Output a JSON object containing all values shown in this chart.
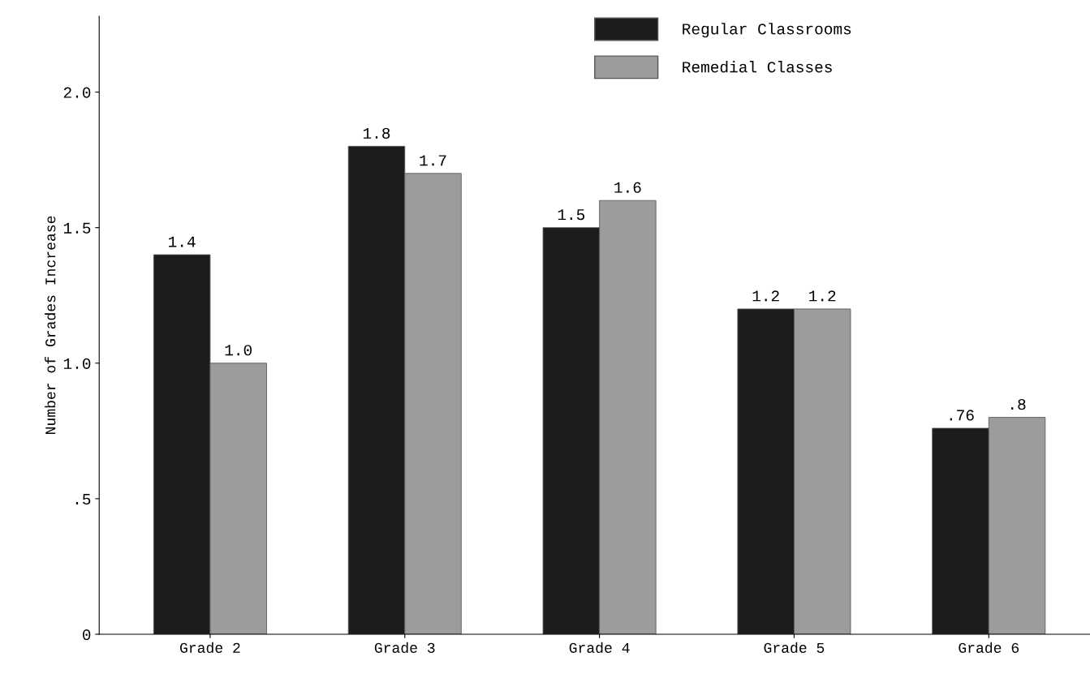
{
  "chart_data": {
    "type": "bar",
    "ylabel": "Number of Grades Increase",
    "categories": [
      "Grade 2",
      "Grade 3",
      "Grade 4",
      "Grade 5",
      "Grade 6"
    ],
    "series": [
      {
        "name": "Regular Classrooms",
        "color": "#1c1c1c",
        "values": [
          1.4,
          1.8,
          1.5,
          1.2,
          0.76
        ],
        "value_labels": [
          "1.4",
          "1.8",
          "1.5",
          "1.2",
          ".76"
        ]
      },
      {
        "name": "Remedial Classes",
        "color": "#9c9c9c",
        "values": [
          1.0,
          1.7,
          1.6,
          1.2,
          0.8
        ],
        "value_labels": [
          "1.0",
          "1.7",
          "1.6",
          "1.2",
          ".8"
        ]
      }
    ],
    "ylim": [
      0,
      2.28
    ],
    "yticks": [
      0,
      {
        "value": 0.5,
        "label": ".5"
      },
      {
        "value": 1.0,
        "label": "1.0"
      },
      {
        "value": 1.5,
        "label": "1.5"
      },
      {
        "value": 2.0,
        "label": "2.0"
      }
    ],
    "grid": false,
    "legend": "top"
  }
}
